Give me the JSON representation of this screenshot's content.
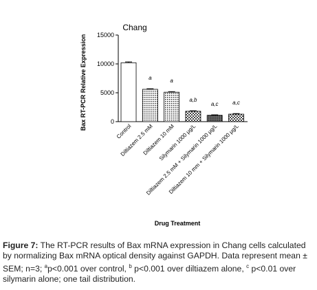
{
  "chart_data": {
    "type": "bar",
    "title": "Chang",
    "y_label": "Bax RT-PCR Relative Expression",
    "x_label": "Drug Treatment",
    "categories": [
      "Control",
      "Diltiazem 2.5 mM",
      "Diltiazem 10 mM",
      "Silymarin 1000 μg/L",
      "Diltiazem 2.5 mM + Silymarin 1000 μg/L",
      "Diltiazem 10 mm + Silymarin 1000 μg/L"
    ],
    "values": [
      10200,
      5600,
      5100,
      1800,
      1100,
      1300
    ],
    "errors": [
      150,
      100,
      100,
      80,
      80,
      100
    ],
    "annotations": [
      null,
      "a",
      "a",
      "a,b",
      "a,c",
      "a,c"
    ],
    "ylim": [
      0,
      15000
    ],
    "yticks": [
      0,
      5000,
      10000,
      15000
    ]
  },
  "caption": {
    "label": "Figure 7:",
    "text1": " The RT-PCR results of Bax mRNA expression in Chang cells calculated by normalizing Bax mRNA optical density against GAPDH. Data represent mean ± SEM; n=3; ",
    "sup_a": "a",
    "text2": "p<0.001 over control, ",
    "sup_b": "b",
    "text3": " p<0.001 over diltiazem alone, ",
    "sup_c": "c",
    "text4": " p<0.01 over silymarin alone; one tail distribution."
  }
}
